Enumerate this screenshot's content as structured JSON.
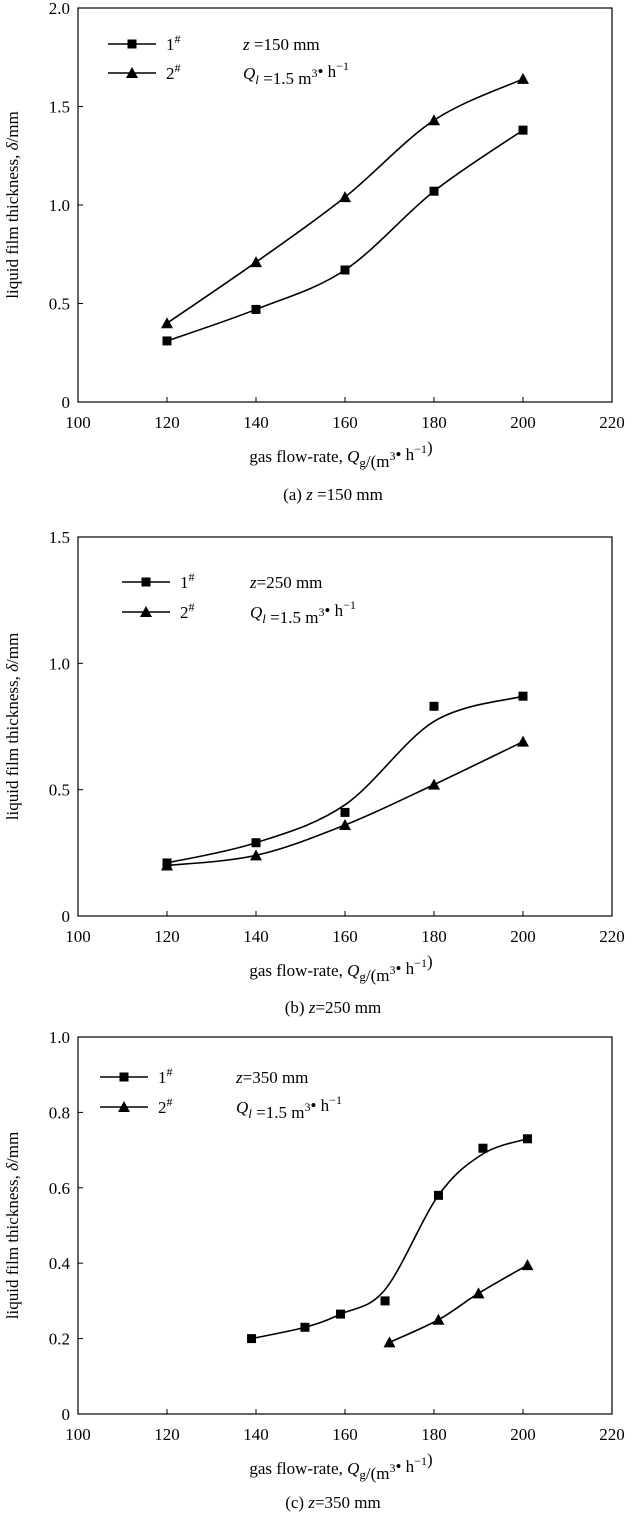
{
  "chart_data": [
    {
      "type": "line",
      "caption": "(a) z =150 mm",
      "xlabel": "gas flow-rate, Qg/(m³• h⁻¹)",
      "ylabel": "liquid film thickness, δ/mm",
      "xlim": [
        100,
        220
      ],
      "ylim": [
        0,
        2.0
      ],
      "xticks": [
        "100",
        "120",
        "140",
        "160",
        "180",
        "200",
        "220"
      ],
      "yticks": [
        "0",
        "0.5",
        "1.0",
        "1.5",
        "2.0"
      ],
      "legend": {
        "placement": "top-left",
        "line1": "z =150 mm",
        "line2": "Ql =1.5  m³• h⁻¹"
      },
      "series": [
        {
          "name": "1#",
          "marker": "square",
          "x": [
            120,
            140,
            160,
            180,
            200
          ],
          "values": [
            0.31,
            0.47,
            0.67,
            1.07,
            1.38
          ]
        },
        {
          "name": "2#",
          "marker": "triangle",
          "x": [
            120,
            140,
            160,
            180,
            200
          ],
          "values": [
            0.4,
            0.71,
            1.04,
            1.43,
            1.64
          ]
        }
      ]
    },
    {
      "type": "line",
      "caption": "(b)  z=250 mm",
      "xlabel": "gas flow-rate, Qg/(m³• h⁻¹)",
      "ylabel": "liquid film thickness, δ/mm",
      "xlim": [
        100,
        220
      ],
      "ylim": [
        0,
        1.5
      ],
      "xticks": [
        "100",
        "120",
        "140",
        "160",
        "180",
        "200",
        "220"
      ],
      "yticks": [
        "0",
        "0.5",
        "1.0",
        "1.5"
      ],
      "legend": {
        "placement": "top-left",
        "line1": "z=250 mm",
        "line2": "Ql =1.5 m³• h⁻¹"
      },
      "series": [
        {
          "name": "1#",
          "marker": "square",
          "x": [
            120,
            140,
            160,
            180,
            200
          ],
          "values": [
            0.21,
            0.29,
            0.41,
            0.83,
            0.87
          ]
        },
        {
          "name": "2#",
          "marker": "triangle",
          "x": [
            120,
            140,
            160,
            180,
            200
          ],
          "values": [
            0.2,
            0.24,
            0.36,
            0.52,
            0.69
          ]
        }
      ]
    },
    {
      "type": "line",
      "caption": "(c)  z=350 mm",
      "xlabel": "gas flow-rate, Qg/(m³• h⁻¹)",
      "ylabel": "liquid film thickness, δ/mm",
      "xlim": [
        100,
        220
      ],
      "ylim": [
        0,
        1.0
      ],
      "xticks": [
        "100",
        "120",
        "140",
        "160",
        "180",
        "200",
        "220"
      ],
      "yticks": [
        "0",
        "0.2",
        "0.4",
        "0.6",
        "0.8",
        "1.0"
      ],
      "legend": {
        "placement": "top-left",
        "line1": "z=350 mm",
        "line2": "Ql =1.5 m³• h⁻¹"
      },
      "series": [
        {
          "name": "1#",
          "marker": "square",
          "x": [
            139,
            151,
            159,
            169,
            181,
            191,
            201
          ],
          "values": [
            0.2,
            0.23,
            0.265,
            0.3,
            0.58,
            0.705,
            0.73
          ]
        },
        {
          "name": "2#",
          "marker": "triangle",
          "x": [
            170,
            181,
            190,
            201
          ],
          "values": [
            0.19,
            0.25,
            0.32,
            0.395
          ]
        }
      ]
    }
  ]
}
